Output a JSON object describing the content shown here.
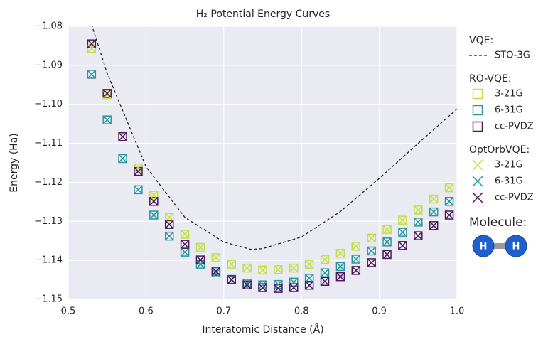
{
  "chart_data": {
    "type": "scatter",
    "title": "H₂ Potential Energy Curves",
    "x_label": "Interatomic Distance (Å)",
    "y_label": "Energy (Ha)",
    "xlim": [
      0.5,
      1.0
    ],
    "ylim": [
      -1.15,
      -1.08
    ],
    "xticks": [
      0.5,
      0.6,
      0.7,
      0.8,
      0.9,
      {
        "value": 1.0,
        "label": "1.0"
      }
    ],
    "yticks": [
      {
        "value": -1.08,
        "label": "−1.08"
      },
      {
        "value": -1.09,
        "label": "−1.09"
      },
      {
        "value": -1.1,
        "label": "−1.10"
      },
      {
        "value": -1.11,
        "label": "−1.11"
      },
      {
        "value": -1.12,
        "label": "−1.12"
      },
      {
        "value": -1.13,
        "label": "−1.13"
      },
      {
        "value": -1.14,
        "label": "−1.14"
      },
      {
        "value": -1.15,
        "label": "−1.15"
      }
    ],
    "grid": true,
    "x": [
      0.53,
      0.55,
      0.57,
      0.59,
      0.61,
      0.63,
      0.65,
      0.67,
      0.69,
      0.71,
      0.73,
      0.75,
      0.77,
      0.79,
      0.81,
      0.83,
      0.85,
      0.87,
      0.89,
      0.91,
      0.93,
      0.95,
      0.97,
      0.99
    ],
    "legend_groups": [
      "VQE:",
      "RO-VQE:",
      "OptOrbVQE:"
    ],
    "series": [
      {
        "name": "STO-3G",
        "group": 0,
        "marker": "dashed",
        "color": "#222222",
        "x": [
          0.53,
          0.55,
          0.6,
          0.65,
          0.7,
          0.735,
          0.75,
          0.8,
          0.85,
          0.9,
          0.95,
          1.0
        ],
        "values": [
          -1.0795,
          -1.092,
          -1.116,
          -1.129,
          -1.1353,
          -1.1372,
          -1.137,
          -1.134,
          -1.1275,
          -1.119,
          -1.11,
          -1.1012
        ]
      },
      {
        "name": "3-21G",
        "group": 1,
        "marker": "square",
        "color": "#c5df3c",
        "values": [
          -1.0857,
          -1.0975,
          -1.1083,
          -1.1163,
          -1.1233,
          -1.129,
          -1.1333,
          -1.1367,
          -1.1393,
          -1.141,
          -1.142,
          -1.1425,
          -1.1424,
          -1.142,
          -1.141,
          -1.1398,
          -1.1382,
          -1.1364,
          -1.1343,
          -1.1321,
          -1.1297,
          -1.1271,
          -1.1243,
          -1.1214
        ]
      },
      {
        "name": "6-31G",
        "group": 1,
        "marker": "square",
        "color": "#2a98a0",
        "values": [
          -1.0923,
          -1.104,
          -1.1139,
          -1.1219,
          -1.1284,
          -1.1338,
          -1.1379,
          -1.141,
          -1.1432,
          -1.1449,
          -1.1459,
          -1.1463,
          -1.1462,
          -1.1456,
          -1.1446,
          -1.1432,
          -1.1416,
          -1.1397,
          -1.1376,
          -1.1353,
          -1.1328,
          -1.1302,
          -1.1276,
          -1.1249
        ]
      },
      {
        "name": "cc-PVDZ",
        "group": 1,
        "marker": "square",
        "color": "#4a1a5c",
        "values": [
          -1.0845,
          -1.0972,
          -1.1083,
          -1.1172,
          -1.1249,
          -1.1308,
          -1.1359,
          -1.1399,
          -1.1428,
          -1.145,
          -1.1463,
          -1.147,
          -1.1472,
          -1.147,
          -1.1464,
          -1.1454,
          -1.1442,
          -1.1426,
          -1.1406,
          -1.1385,
          -1.1362,
          -1.1337,
          -1.1311,
          -1.1284
        ]
      },
      {
        "name": "3-21G",
        "group": 2,
        "marker": "x",
        "color": "#c5df3c",
        "values": [
          -1.0857,
          -1.0975,
          -1.1083,
          -1.1163,
          -1.1233,
          -1.129,
          -1.1333,
          -1.1367,
          -1.1393,
          -1.141,
          -1.142,
          -1.1425,
          -1.1424,
          -1.142,
          -1.141,
          -1.1398,
          -1.1382,
          -1.1364,
          -1.1343,
          -1.1321,
          -1.1297,
          -1.1271,
          -1.1243,
          -1.1214
        ]
      },
      {
        "name": "6-31G",
        "group": 2,
        "marker": "x",
        "color": "#2a98a0",
        "values": [
          -1.0923,
          -1.104,
          -1.1139,
          -1.1219,
          -1.1284,
          -1.1338,
          -1.1379,
          -1.141,
          -1.1432,
          -1.1449,
          -1.1459,
          -1.1463,
          -1.1462,
          -1.1456,
          -1.1446,
          -1.1432,
          -1.1416,
          -1.1397,
          -1.1376,
          -1.1353,
          -1.1328,
          -1.1302,
          -1.1276,
          -1.1249
        ]
      },
      {
        "name": "cc-PVDZ",
        "group": 2,
        "marker": "x",
        "color": "#4a1a5c",
        "values": [
          -1.0845,
          -1.0972,
          -1.1083,
          -1.1172,
          -1.1249,
          -1.1308,
          -1.1359,
          -1.1399,
          -1.1428,
          -1.145,
          -1.1463,
          -1.147,
          -1.1472,
          -1.147,
          -1.1464,
          -1.1454,
          -1.1442,
          -1.1426,
          -1.1406,
          -1.1385,
          -1.1362,
          -1.1337,
          -1.1311,
          -1.1284
        ]
      }
    ],
    "molecule_title": "Molecule:",
    "molecule_atoms": [
      "H",
      "H"
    ]
  }
}
